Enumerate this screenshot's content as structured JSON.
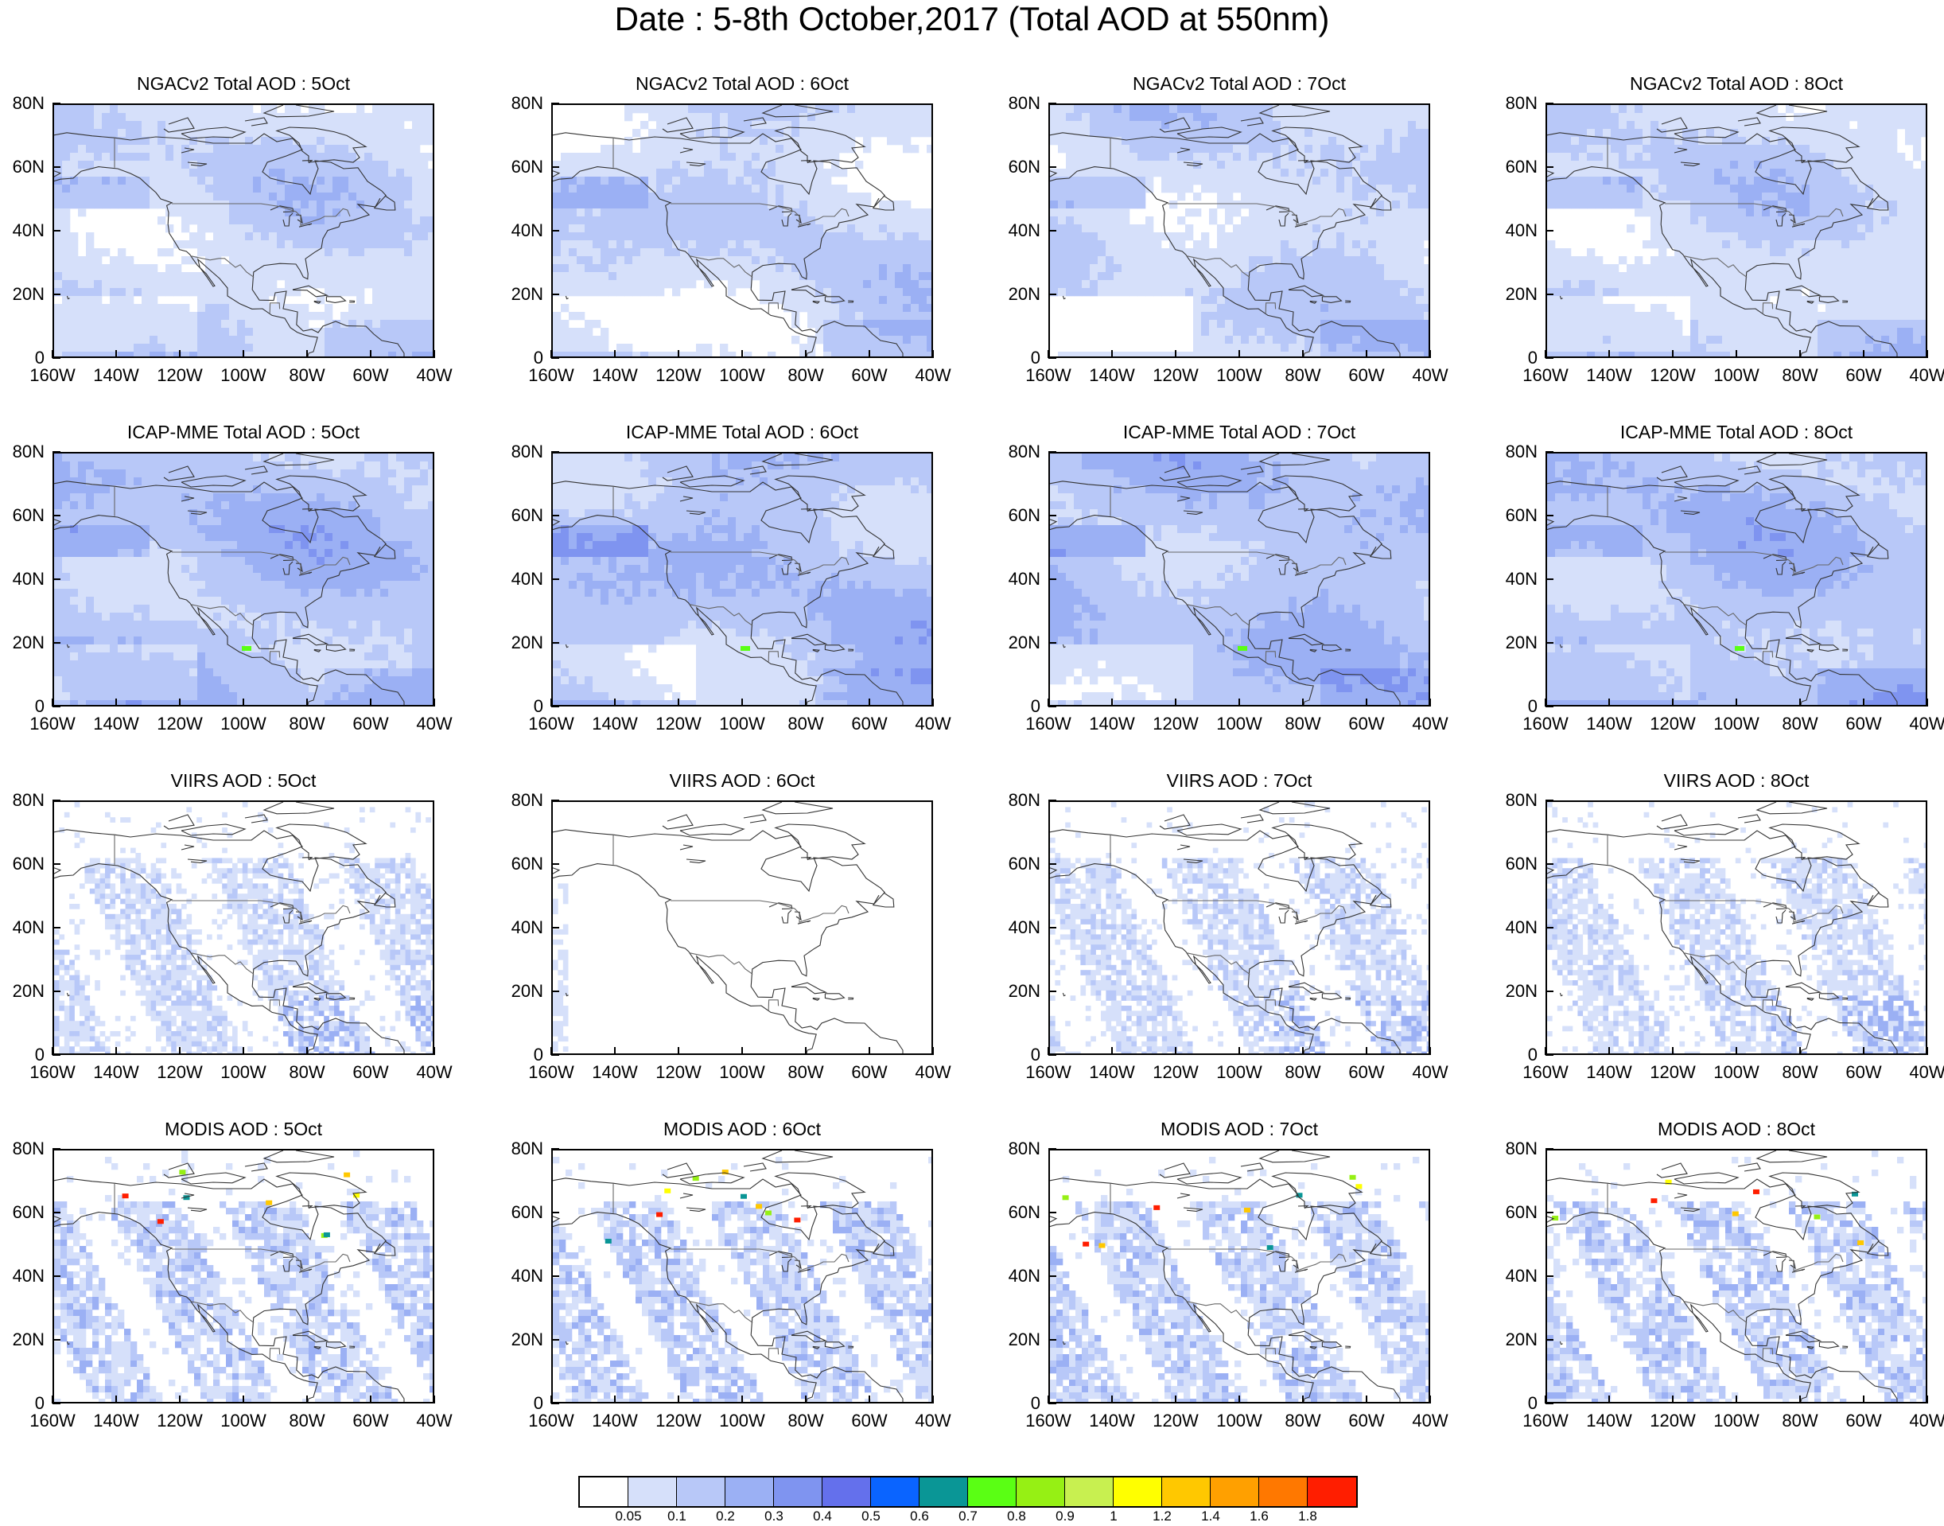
{
  "figure_title": "Date : 5-8th October,2017 (Total AOD at 550nm)",
  "panels": [
    {
      "title": "NGACv2 Total AOD : 5Oct",
      "product": "ngac"
    },
    {
      "title": "NGACv2 Total AOD : 6Oct",
      "product": "ngac"
    },
    {
      "title": "NGACv2 Total AOD : 7Oct",
      "product": "ngac"
    },
    {
      "title": "NGACv2 Total AOD : 8Oct",
      "product": "ngac"
    },
    {
      "title": "ICAP-MME Total AOD : 5Oct",
      "product": "icap"
    },
    {
      "title": "ICAP-MME Total AOD : 6Oct",
      "product": "icap"
    },
    {
      "title": "ICAP-MME Total AOD : 7Oct",
      "product": "icap"
    },
    {
      "title": "ICAP-MME Total AOD : 8Oct",
      "product": "icap"
    },
    {
      "title": "VIIRS AOD : 5Oct",
      "product": "viirs"
    },
    {
      "title": "VIIRS AOD : 6Oct",
      "product": "viirs_sparse"
    },
    {
      "title": "VIIRS AOD : 7Oct",
      "product": "viirs"
    },
    {
      "title": "VIIRS AOD : 8Oct",
      "product": "viirs"
    },
    {
      "title": "MODIS AOD : 5Oct",
      "product": "modis"
    },
    {
      "title": "MODIS AOD : 6Oct",
      "product": "modis"
    },
    {
      "title": "MODIS AOD : 7Oct",
      "product": "modis"
    },
    {
      "title": "MODIS AOD : 8Oct",
      "product": "modis"
    }
  ],
  "lat_ticks": [
    "80N",
    "60N",
    "40N",
    "20N",
    "0"
  ],
  "lon_ticks": [
    "160W",
    "140W",
    "120W",
    "100W",
    "80W",
    "60W",
    "40W"
  ],
  "colorbar": {
    "levels": [
      "0.05",
      "0.1",
      "0.2",
      "0.3",
      "0.4",
      "0.5",
      "0.6",
      "0.7",
      "0.8",
      "0.9",
      "1",
      "1.2",
      "1.4",
      "1.6",
      "1.8"
    ],
    "colors": [
      "#ffffff",
      "#d6e0fa",
      "#b8c8f8",
      "#9bb0f4",
      "#7f94f0",
      "#6470ec",
      "#0a64ff",
      "#0a9696",
      "#5aff14",
      "#96f014",
      "#c8f050",
      "#ffff00",
      "#ffc800",
      "#ffa000",
      "#ff7800",
      "#ff1e00"
    ]
  }
}
